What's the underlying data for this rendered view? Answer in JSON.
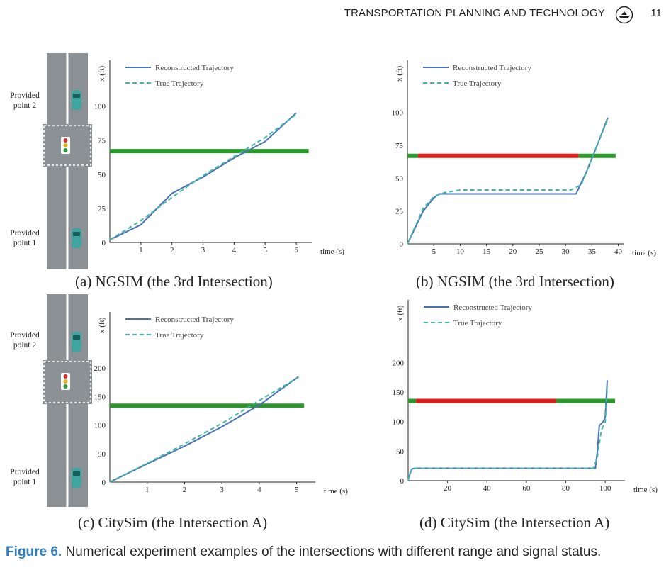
{
  "header": {
    "journal_title": "TRANSPORTATION PLANNING AND TECHNOLOGY",
    "page_number": "11"
  },
  "road_labels": {
    "top": "Provided\npoint 2",
    "bottom": "Provided\npoint 1"
  },
  "subcaptions": {
    "a": "(a) NGSIM (the 3rd Intersection)",
    "b": "(b) NGSIM (the 3rd Intersection)",
    "c": "(c) CitySim (the Intersection A)",
    "d": "(d) CitySim (the Intersection A)"
  },
  "caption": {
    "label": "Figure 6.",
    "text": " Numerical experiment examples of the intersections with different range and signal status."
  },
  "colors": {
    "reconstructed": "#4a72b8",
    "true": "#3fb8a8",
    "green_signal": "#2a9a2a",
    "red_signal": "#e21b1b",
    "accent": "#2f7fbf"
  },
  "chart_data": [
    {
      "id": "a",
      "type": "line",
      "xlabel": "time (s)",
      "ylabel": "x (ft)",
      "xlim": [
        0,
        6.5
      ],
      "ylim": [
        0,
        105
      ],
      "xticks": [
        1,
        2,
        3,
        4,
        5,
        6
      ],
      "yticks": [
        0,
        25,
        50,
        75,
        100
      ],
      "legend": [
        "Reconstructed Trajectory",
        "True Trajectory"
      ],
      "series": [
        {
          "name": "Reconstructed Trajectory",
          "style": "solid",
          "x": [
            0,
            1,
            2,
            3,
            4,
            5,
            6
          ],
          "y": [
            2,
            13,
            36,
            48,
            62,
            74,
            95
          ]
        },
        {
          "name": "True Trajectory",
          "style": "dashed",
          "x": [
            0,
            1,
            2,
            3,
            4,
            5,
            6
          ],
          "y": [
            2,
            16,
            33,
            49,
            63,
            77,
            94
          ]
        }
      ],
      "signal": [
        {
          "color": "green",
          "y": 67,
          "x_from": 0,
          "x_to": 6.4
        }
      ]
    },
    {
      "id": "b",
      "type": "line",
      "xlabel": "time (s)",
      "ylabel": "x (ft)",
      "xlim": [
        0,
        41
      ],
      "ylim": [
        0,
        110
      ],
      "xticks": [
        5,
        10,
        15,
        20,
        25,
        30,
        35,
        40
      ],
      "yticks": [
        0,
        25,
        50,
        75,
        100
      ],
      "legend": [
        "Reconstructed Trajectory",
        "True Trajectory"
      ],
      "series": [
        {
          "name": "Reconstructed Trajectory",
          "style": "solid",
          "x": [
            0,
            3,
            5,
            6,
            8,
            32,
            34,
            36,
            38
          ],
          "y": [
            0,
            25,
            35,
            38,
            38,
            38,
            55,
            75,
            96
          ]
        },
        {
          "name": "True Trajectory",
          "style": "dashed",
          "x": [
            0,
            3,
            5,
            7,
            10,
            20,
            31,
            33,
            36,
            38
          ],
          "y": [
            0,
            27,
            36,
            39,
            41,
            41,
            41,
            45,
            75,
            95
          ]
        }
      ],
      "signal": [
        {
          "color": "green",
          "y": 67,
          "x_from": 0,
          "x_to": 2
        },
        {
          "color": "red",
          "y": 67,
          "x_from": 2,
          "x_to": 32.5
        },
        {
          "color": "green",
          "y": 67,
          "x_from": 32.5,
          "x_to": 39.5
        }
      ]
    },
    {
      "id": "c",
      "type": "line",
      "xlabel": "time (s)",
      "ylabel": "x (ft)",
      "xlim": [
        0,
        5.5
      ],
      "ylim": [
        0,
        230
      ],
      "xticks": [
        1,
        2,
        3,
        4,
        5
      ],
      "yticks": [
        0,
        50,
        100,
        150,
        200
      ],
      "legend": [
        "Reconstructed Trajectory",
        "True Trajectory"
      ],
      "series": [
        {
          "name": "Reconstructed Trajectory",
          "style": "solid",
          "x": [
            0,
            1,
            2,
            3,
            4,
            5.05
          ],
          "y": [
            0,
            32,
            63,
            97,
            135,
            185
          ]
        },
        {
          "name": "True Trajectory",
          "style": "dashed",
          "x": [
            0,
            1,
            2,
            3,
            4,
            5.05
          ],
          "y": [
            0,
            33,
            67,
            103,
            143,
            184
          ]
        }
      ],
      "signal": [
        {
          "color": "green",
          "y": 134,
          "x_from": 0,
          "x_to": 5.2
        }
      ]
    },
    {
      "id": "d",
      "type": "line",
      "xlabel": "time (s)",
      "ylabel": "x (ft)",
      "xlim": [
        0,
        110
      ],
      "ylim": [
        0,
        240
      ],
      "xticks": [
        20,
        40,
        60,
        80,
        100
      ],
      "yticks": [
        0,
        50,
        100,
        150,
        200
      ],
      "legend": [
        "Reconstructed Trajectory",
        "True Trajectory"
      ],
      "series": [
        {
          "name": "Reconstructed Trajectory",
          "style": "solid",
          "x": [
            0,
            1,
            2,
            4,
            95,
            96,
            97,
            99,
            100,
            101
          ],
          "y": [
            0,
            12,
            20,
            21,
            21,
            50,
            93,
            100,
            108,
            170
          ]
        },
        {
          "name": "True Trajectory",
          "style": "dashed",
          "x": [
            0,
            1,
            2,
            4,
            94,
            96,
            98,
            100,
            101
          ],
          "y": [
            0,
            14,
            20,
            21,
            21,
            40,
            85,
            100,
            160
          ]
        }
      ],
      "signal": [
        {
          "color": "green",
          "y": 135,
          "x_from": 0,
          "x_to": 4
        },
        {
          "color": "red",
          "y": 135,
          "x_from": 4,
          "x_to": 75
        },
        {
          "color": "green",
          "y": 135,
          "x_from": 75,
          "x_to": 105
        }
      ]
    }
  ]
}
